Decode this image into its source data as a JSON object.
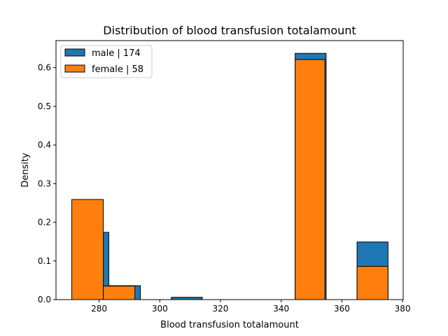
{
  "chart_data": {
    "type": "bar",
    "title": "Distribution of blood transfusion totalamount",
    "xlabel": "Blood transfusion totalamount",
    "ylabel": "Density",
    "xlim": [
      265.8,
      380.2
    ],
    "ylim": [
      0,
      0.67
    ],
    "xticks": [
      280,
      300,
      320,
      340,
      360,
      380
    ],
    "yticks": [
      0.0,
      0.1,
      0.2,
      0.3,
      0.4,
      0.5,
      0.6
    ],
    "legend_position": "top-left",
    "grid": false,
    "series": [
      {
        "name": "male | 174",
        "color": "#1f77b4",
        "bins": [
          {
            "x0": 271.3,
            "x1": 283.2,
            "density": 0.174
          },
          {
            "x0": 283.2,
            "x1": 293.6,
            "density": 0.036
          },
          {
            "x0": 303.8,
            "x1": 314.0,
            "density": 0.006
          },
          {
            "x0": 344.6,
            "x1": 354.8,
            "density": 0.637
          },
          {
            "x0": 365.0,
            "x1": 375.2,
            "density": 0.149
          }
        ]
      },
      {
        "name": "female | 58",
        "color": "#ff7f0e",
        "bins": [
          {
            "x0": 271.0,
            "x1": 281.4,
            "density": 0.259
          },
          {
            "x0": 281.4,
            "x1": 291.8,
            "density": 0.035
          },
          {
            "x0": 344.6,
            "x1": 354.4,
            "density": 0.621
          },
          {
            "x0": 365.0,
            "x1": 375.2,
            "density": 0.086
          }
        ]
      }
    ]
  }
}
